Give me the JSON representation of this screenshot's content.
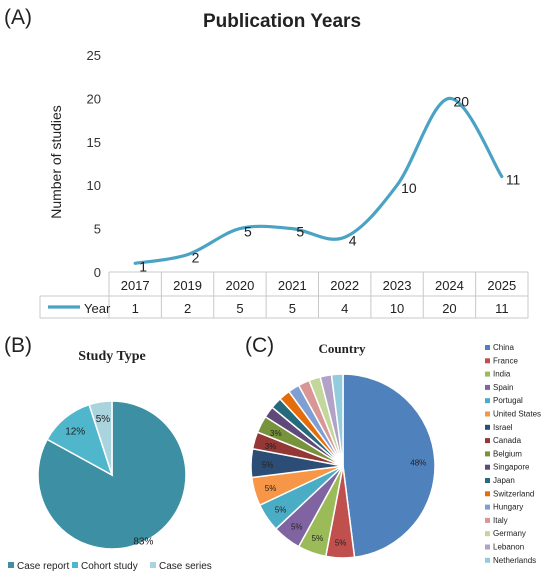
{
  "panels": {
    "a": "(A)",
    "b": "(B)",
    "c": "(C)"
  },
  "chart_data": [
    {
      "type": "line",
      "title": "Publication Years",
      "xlabel": "",
      "ylabel": "Number of studies",
      "ylim": [
        0,
        25
      ],
      "yticks": [
        "0",
        "5",
        "10",
        "15",
        "20",
        "25"
      ],
      "categories": [
        "2017",
        "2019",
        "2020",
        "2021",
        "2022",
        "2023",
        "2024",
        "2025"
      ],
      "series": [
        {
          "name": "Year",
          "values": [
            1,
            2,
            5,
            5,
            4,
            10,
            20,
            11
          ],
          "labels": [
            "1",
            "2",
            "5",
            "5",
            "4",
            "10",
            "20",
            "11"
          ]
        }
      ],
      "data_table": true,
      "grid": false,
      "color": "#4aa3c4"
    },
    {
      "type": "pie",
      "title": "Study Type",
      "categories": [
        "Case report",
        "Cohort study",
        "Case series"
      ],
      "values": [
        83,
        12,
        5
      ],
      "labels": [
        "83%",
        "12%",
        "5%"
      ],
      "colors": [
        "#3d8fa3",
        "#4fb6cc",
        "#a9d3dd"
      ],
      "legend": "bottom"
    },
    {
      "type": "pie",
      "title": "Country",
      "categories": [
        "China",
        "France",
        "India",
        "Spain",
        "Portugal",
        "United States",
        "Israel",
        "Canada",
        "Belgium",
        "Singapore",
        "Japan",
        "Switzerland",
        "Hungary",
        "Italy",
        "Germany",
        "Lebanon",
        "Netherlands"
      ],
      "values": [
        48,
        5,
        5,
        5,
        5,
        5,
        5,
        3,
        3,
        2,
        2,
        2,
        2,
        2,
        2,
        2,
        2
      ],
      "labels": [
        "48%",
        "5%",
        "5%",
        "5%",
        "5%",
        "5%",
        "5%",
        "3%",
        "3%",
        "",
        "",
        "",
        "",
        "",
        "",
        "",
        ""
      ],
      "colors": [
        "#4f81bd",
        "#c0504d",
        "#9bbb59",
        "#8064a2",
        "#4bacc6",
        "#f79646",
        "#2c4d75",
        "#953735",
        "#77933c",
        "#5f497a",
        "#276a7c",
        "#e46c0a",
        "#7f9fd3",
        "#d99694",
        "#c3d69b",
        "#b3a2c7",
        "#93cddd"
      ],
      "legend": "right"
    }
  ]
}
